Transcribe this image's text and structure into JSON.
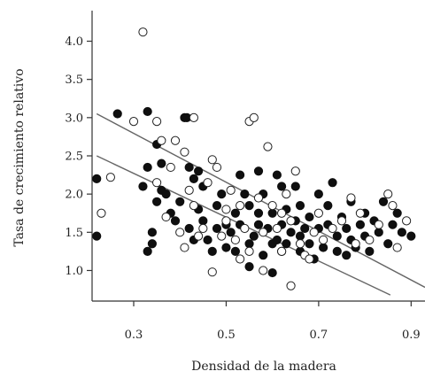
{
  "chart_data": {
    "type": "scatter",
    "xlabel": "Densidad de la madera",
    "ylabel": "Tasa de crecimiento relativo",
    "xlim": [
      0.21,
      0.93
    ],
    "ylim": [
      0.6,
      4.4
    ],
    "x_ticks": [
      0.3,
      0.5,
      0.7,
      0.9
    ],
    "x_tick_labels": [
      "0.3",
      "0.5",
      "0.7",
      "0.9"
    ],
    "y_ticks": [
      1.0,
      1.5,
      2.0,
      2.5,
      3.0,
      3.5,
      4.0
    ],
    "y_tick_labels": [
      "1.0",
      "1.5",
      "2.0",
      "2.5",
      "3.0",
      "3.5",
      "4.0"
    ],
    "grid": false,
    "legend": "none",
    "series": [
      {
        "marker": "filled",
        "color": "#0f0f0f",
        "points": [
          [
            0.22,
            2.2
          ],
          [
            0.22,
            1.45
          ],
          [
            0.265,
            3.05
          ],
          [
            0.33,
            3.08
          ],
          [
            0.33,
            2.35
          ],
          [
            0.32,
            2.1
          ],
          [
            0.34,
            1.5
          ],
          [
            0.34,
            1.35
          ],
          [
            0.33,
            1.25
          ],
          [
            0.35,
            2.65
          ],
          [
            0.36,
            2.4
          ],
          [
            0.36,
            2.05
          ],
          [
            0.35,
            1.9
          ],
          [
            0.37,
            2.0
          ],
          [
            0.38,
            1.75
          ],
          [
            0.39,
            1.65
          ],
          [
            0.4,
            1.9
          ],
          [
            0.41,
            3.0
          ],
          [
            0.415,
            3.0
          ],
          [
            0.42,
            2.35
          ],
          [
            0.43,
            2.2
          ],
          [
            0.42,
            1.55
          ],
          [
            0.43,
            1.4
          ],
          [
            0.44,
            2.3
          ],
          [
            0.44,
            1.8
          ],
          [
            0.45,
            1.65
          ],
          [
            0.46,
            1.4
          ],
          [
            0.47,
            1.25
          ],
          [
            0.48,
            1.85
          ],
          [
            0.49,
            2.0
          ],
          [
            0.5,
            1.6
          ],
          [
            0.5,
            1.3
          ],
          [
            0.51,
            1.5
          ],
          [
            0.52,
            1.75
          ],
          [
            0.52,
            1.25
          ],
          [
            0.53,
            1.6
          ],
          [
            0.54,
            2.0
          ],
          [
            0.55,
            1.35
          ],
          [
            0.55,
            1.85
          ],
          [
            0.56,
            1.45
          ],
          [
            0.57,
            1.6
          ],
          [
            0.57,
            2.3
          ],
          [
            0.58,
            1.2
          ],
          [
            0.58,
            2.0
          ],
          [
            0.59,
            1.55
          ],
          [
            0.6,
            1.35
          ],
          [
            0.6,
            1.75
          ],
          [
            0.61,
            2.25
          ],
          [
            0.61,
            1.4
          ],
          [
            0.62,
            2.1
          ],
          [
            0.62,
            1.6
          ],
          [
            0.63,
            1.8
          ],
          [
            0.63,
            1.35
          ],
          [
            0.64,
            1.5
          ],
          [
            0.65,
            1.65
          ],
          [
            0.65,
            2.1
          ],
          [
            0.66,
            1.45
          ],
          [
            0.66,
            1.85
          ],
          [
            0.67,
            1.55
          ],
          [
            0.68,
            1.35
          ],
          [
            0.68,
            1.7
          ],
          [
            0.7,
            1.55
          ],
          [
            0.7,
            2.0
          ],
          [
            0.71,
            1.3
          ],
          [
            0.72,
            1.6
          ],
          [
            0.72,
            1.85
          ],
          [
            0.74,
            1.45
          ],
          [
            0.74,
            1.25
          ],
          [
            0.75,
            1.7
          ],
          [
            0.76,
            1.55
          ],
          [
            0.77,
            1.4
          ],
          [
            0.77,
            1.9
          ],
          [
            0.78,
            1.3
          ],
          [
            0.79,
            1.6
          ],
          [
            0.8,
            1.45
          ],
          [
            0.8,
            1.75
          ],
          [
            0.81,
            1.25
          ],
          [
            0.82,
            1.65
          ],
          [
            0.83,
            1.5
          ],
          [
            0.84,
            1.9
          ],
          [
            0.85,
            1.35
          ],
          [
            0.86,
            1.6
          ],
          [
            0.87,
            1.75
          ],
          [
            0.88,
            1.5
          ],
          [
            0.9,
            1.45
          ],
          [
            0.55,
            1.05
          ],
          [
            0.6,
            0.97
          ],
          [
            0.73,
            2.15
          ],
          [
            0.66,
            1.25
          ],
          [
            0.48,
            1.55
          ],
          [
            0.45,
            2.1
          ],
          [
            0.53,
            2.25
          ],
          [
            0.69,
            1.15
          ],
          [
            0.62,
            1.25
          ],
          [
            0.57,
            1.75
          ],
          [
            0.76,
            1.2
          ]
        ]
      },
      {
        "marker": "open",
        "color": "#222222",
        "points": [
          [
            0.32,
            4.12
          ],
          [
            0.23,
            1.75
          ],
          [
            0.25,
            2.22
          ],
          [
            0.3,
            2.95
          ],
          [
            0.35,
            2.95
          ],
          [
            0.36,
            2.7
          ],
          [
            0.38,
            2.35
          ],
          [
            0.39,
            2.7
          ],
          [
            0.41,
            2.55
          ],
          [
            0.43,
            3.0
          ],
          [
            0.35,
            2.15
          ],
          [
            0.37,
            1.7
          ],
          [
            0.4,
            1.5
          ],
          [
            0.41,
            1.3
          ],
          [
            0.42,
            2.05
          ],
          [
            0.43,
            1.85
          ],
          [
            0.45,
            1.55
          ],
          [
            0.46,
            2.15
          ],
          [
            0.47,
            2.45
          ],
          [
            0.48,
            2.35
          ],
          [
            0.49,
            1.45
          ],
          [
            0.5,
            1.8
          ],
          [
            0.51,
            2.05
          ],
          [
            0.52,
            1.4
          ],
          [
            0.53,
            1.85
          ],
          [
            0.54,
            1.55
          ],
          [
            0.55,
            1.25
          ],
          [
            0.55,
            2.95
          ],
          [
            0.56,
            3.0
          ],
          [
            0.57,
            1.95
          ],
          [
            0.58,
            1.5
          ],
          [
            0.59,
            2.62
          ],
          [
            0.6,
            1.85
          ],
          [
            0.61,
            1.55
          ],
          [
            0.62,
            1.25
          ],
          [
            0.63,
            2.0
          ],
          [
            0.64,
            1.65
          ],
          [
            0.65,
            2.3
          ],
          [
            0.66,
            1.35
          ],
          [
            0.67,
            1.2
          ],
          [
            0.69,
            1.5
          ],
          [
            0.7,
            1.75
          ],
          [
            0.71,
            1.4
          ],
          [
            0.73,
            1.55
          ],
          [
            0.75,
            1.65
          ],
          [
            0.77,
            1.95
          ],
          [
            0.79,
            1.75
          ],
          [
            0.81,
            1.4
          ],
          [
            0.83,
            1.6
          ],
          [
            0.85,
            2.0
          ],
          [
            0.86,
            1.85
          ],
          [
            0.87,
            1.3
          ],
          [
            0.89,
            1.65
          ],
          [
            0.64,
            0.8
          ],
          [
            0.47,
            0.98
          ],
          [
            0.58,
            1.0
          ],
          [
            0.5,
            1.65
          ],
          [
            0.44,
            1.45
          ],
          [
            0.62,
            1.75
          ],
          [
            0.68,
            1.15
          ],
          [
            0.78,
            1.35
          ],
          [
            0.53,
            1.15
          ]
        ]
      }
    ],
    "trend_lines": [
      {
        "from": [
          0.22,
          3.05
        ],
        "to": [
          0.93,
          0.78
        ]
      },
      {
        "from": [
          0.22,
          2.5
        ],
        "to": [
          0.855,
          0.68
        ]
      }
    ]
  }
}
